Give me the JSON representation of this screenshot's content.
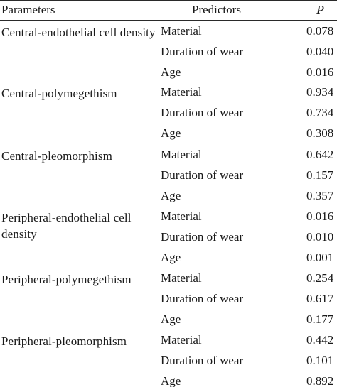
{
  "table": {
    "headers": {
      "parameters": "Parameters",
      "predictors": "Predictors",
      "p": "P"
    },
    "groups": [
      {
        "parameter": "Central-endothelial cell density",
        "rows": [
          {
            "predictor": "Material",
            "p": "0.078"
          },
          {
            "predictor": "Duration of wear",
            "p": "0.040"
          },
          {
            "predictor": "Age",
            "p": "0.016"
          }
        ]
      },
      {
        "parameter": "Central-polymegethism",
        "rows": [
          {
            "predictor": "Material",
            "p": "0.934"
          },
          {
            "predictor": "Duration of wear",
            "p": "0.734"
          },
          {
            "predictor": "Age",
            "p": "0.308"
          }
        ]
      },
      {
        "parameter": "Central-pleomorphism",
        "rows": [
          {
            "predictor": "Material",
            "p": "0.642"
          },
          {
            "predictor": "Duration of wear",
            "p": "0.157"
          },
          {
            "predictor": "Age",
            "p": "0.357"
          }
        ]
      },
      {
        "parameter": "Peripheral-endothelial cell density",
        "rows": [
          {
            "predictor": "Material",
            "p": "0.016"
          },
          {
            "predictor": "Duration of wear",
            "p": "0.010"
          },
          {
            "predictor": "Age",
            "p": "0.001"
          }
        ]
      },
      {
        "parameter": "Peripheral-polymegethism",
        "rows": [
          {
            "predictor": "Material",
            "p": "0.254"
          },
          {
            "predictor": "Duration of wear",
            "p": "0.617"
          },
          {
            "predictor": "Age",
            "p": "0.177"
          }
        ]
      },
      {
        "parameter": "Peripheral-pleomorphism",
        "rows": [
          {
            "predictor": "Material",
            "p": "0.442"
          },
          {
            "predictor": "Duration of wear",
            "p": "0.101"
          },
          {
            "predictor": "Age",
            "p": "0.892"
          }
        ]
      }
    ]
  }
}
